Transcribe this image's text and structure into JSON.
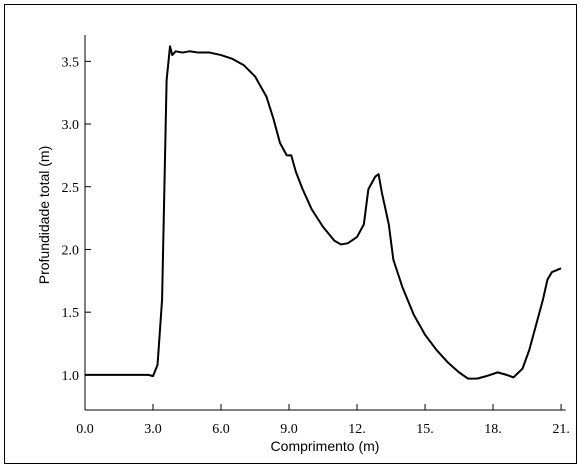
{
  "chart_data": {
    "type": "line",
    "xlabel": "Comprimento (m)",
    "ylabel": "Profundidade total (m)",
    "x": [
      0,
      1,
      2,
      2.5,
      2.8,
      3.0,
      3.2,
      3.4,
      3.6,
      3.75,
      3.85,
      4.0,
      4.3,
      4.6,
      5.0,
      5.5,
      6.0,
      6.5,
      7.0,
      7.5,
      8.0,
      8.3,
      8.6,
      8.9,
      9.1,
      9.3,
      9.6,
      10.0,
      10.5,
      11.0,
      11.3,
      11.6,
      12.0,
      12.3,
      12.5,
      12.8,
      12.95,
      13.1,
      13.4,
      13.6,
      14.0,
      14.5,
      15.0,
      15.5,
      16.0,
      16.5,
      16.9,
      17.3,
      17.7,
      18.2,
      18.6,
      18.9,
      19.3,
      19.6,
      19.9,
      20.2,
      20.4,
      20.6,
      21.0
    ],
    "series": [
      {
        "color": "#000000",
        "values": [
          1.0,
          1.0,
          1.0,
          1.0,
          1.0,
          0.99,
          1.08,
          1.6,
          3.35,
          3.62,
          3.55,
          3.58,
          3.57,
          3.58,
          3.57,
          3.57,
          3.55,
          3.52,
          3.47,
          3.38,
          3.22,
          3.05,
          2.85,
          2.75,
          2.75,
          2.62,
          2.48,
          2.32,
          2.18,
          2.07,
          2.04,
          2.05,
          2.1,
          2.2,
          2.48,
          2.58,
          2.6,
          2.45,
          2.2,
          1.92,
          1.7,
          1.48,
          1.32,
          1.2,
          1.1,
          1.02,
          0.97,
          0.97,
          0.99,
          1.02,
          1.0,
          0.98,
          1.05,
          1.2,
          1.4,
          1.6,
          1.76,
          1.82,
          1.85
        ]
      }
    ],
    "xlim": [
      0,
      21.2
    ],
    "ylim": [
      0.72,
      3.71
    ],
    "xticks": [
      {
        "value": 0,
        "label": "0.0"
      },
      {
        "value": 3,
        "label": "3.0"
      },
      {
        "value": 6,
        "label": "6.0"
      },
      {
        "value": 9,
        "label": "9.0"
      },
      {
        "value": 12,
        "label": "12."
      },
      {
        "value": 15,
        "label": "15."
      },
      {
        "value": 18,
        "label": "18."
      },
      {
        "value": 21,
        "label": "21."
      }
    ],
    "yticks": [
      {
        "value": 1,
        "label": "1.0"
      },
      {
        "value": 1.5,
        "label": "1.5"
      },
      {
        "value": 2,
        "label": "2.0"
      },
      {
        "value": 2.5,
        "label": "2.5"
      },
      {
        "value": 3,
        "label": "3.0"
      },
      {
        "value": 3.5,
        "label": "3.5"
      }
    ],
    "grid": false
  }
}
